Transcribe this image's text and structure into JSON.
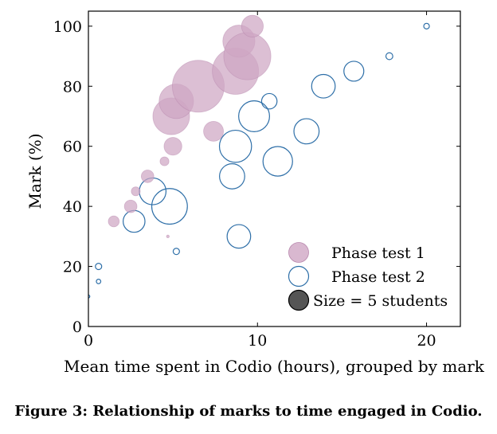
{
  "caption": "Figure 3: Relationship of marks to time engaged in Codio.",
  "colors": {
    "phase1_fill": "#cfa6c4",
    "phase1_stroke": "#b887ad",
    "phase2_stroke": "#2e6fa8",
    "size_ref": "#555555"
  },
  "chart_data": {
    "type": "scatter",
    "xlabel": "Mean time spent in Codio (hours), grouped by mark",
    "ylabel": "Mark (%)",
    "xlim": [
      0,
      22
    ],
    "ylim": [
      0,
      105
    ],
    "x_ticks": [
      0,
      10,
      20
    ],
    "y_ticks": [
      0,
      20,
      40,
      60,
      80,
      100
    ],
    "grid": false,
    "legend": "bottom-right",
    "size_unit": "students",
    "legend_entries": [
      "Phase test 1",
      "Phase test 2",
      "Size = 5 students"
    ],
    "series": [
      {
        "name": "Phase test 1",
        "style": "filled",
        "points": [
          {
            "x": 1.5,
            "y": 35,
            "size": 1.5
          },
          {
            "x": 2.5,
            "y": 40,
            "size": 2
          },
          {
            "x": 2.8,
            "y": 45,
            "size": 1
          },
          {
            "x": 3.5,
            "y": 50,
            "size": 2
          },
          {
            "x": 4.5,
            "y": 55,
            "size": 1
          },
          {
            "x": 4.7,
            "y": 30,
            "size": 0.1
          },
          {
            "x": 5.0,
            "y": 60,
            "size": 4
          },
          {
            "x": 4.9,
            "y": 70,
            "size": 17
          },
          {
            "x": 5.2,
            "y": 75,
            "size": 15
          },
          {
            "x": 6.5,
            "y": 80,
            "size": 34
          },
          {
            "x": 7.4,
            "y": 65,
            "size": 5
          },
          {
            "x": 8.7,
            "y": 85,
            "size": 27
          },
          {
            "x": 8.9,
            "y": 95,
            "size": 13
          },
          {
            "x": 9.4,
            "y": 90,
            "size": 28
          },
          {
            "x": 9.7,
            "y": 100,
            "size": 6
          }
        ]
      },
      {
        "name": "Phase test 2",
        "style": "open",
        "points": [
          {
            "x": 0.0,
            "y": 10,
            "size": 0.1
          },
          {
            "x": 0.6,
            "y": 15,
            "size": 0.25
          },
          {
            "x": 0.6,
            "y": 20,
            "size": 0.5
          },
          {
            "x": 2.7,
            "y": 35,
            "size": 6
          },
          {
            "x": 3.8,
            "y": 45,
            "size": 9
          },
          {
            "x": 4.8,
            "y": 40,
            "size": 16
          },
          {
            "x": 5.2,
            "y": 25,
            "size": 0.5
          },
          {
            "x": 8.5,
            "y": 50,
            "size": 8
          },
          {
            "x": 8.7,
            "y": 60,
            "size": 13
          },
          {
            "x": 8.9,
            "y": 30,
            "size": 7
          },
          {
            "x": 9.8,
            "y": 70,
            "size": 12
          },
          {
            "x": 10.7,
            "y": 75,
            "size": 3
          },
          {
            "x": 11.2,
            "y": 55,
            "size": 11
          },
          {
            "x": 12.9,
            "y": 65,
            "size": 8
          },
          {
            "x": 13.9,
            "y": 80,
            "size": 7
          },
          {
            "x": 15.7,
            "y": 85,
            "size": 5
          },
          {
            "x": 17.8,
            "y": 90,
            "size": 0.6
          },
          {
            "x": 20.0,
            "y": 100,
            "size": 0.4
          }
        ]
      }
    ]
  }
}
